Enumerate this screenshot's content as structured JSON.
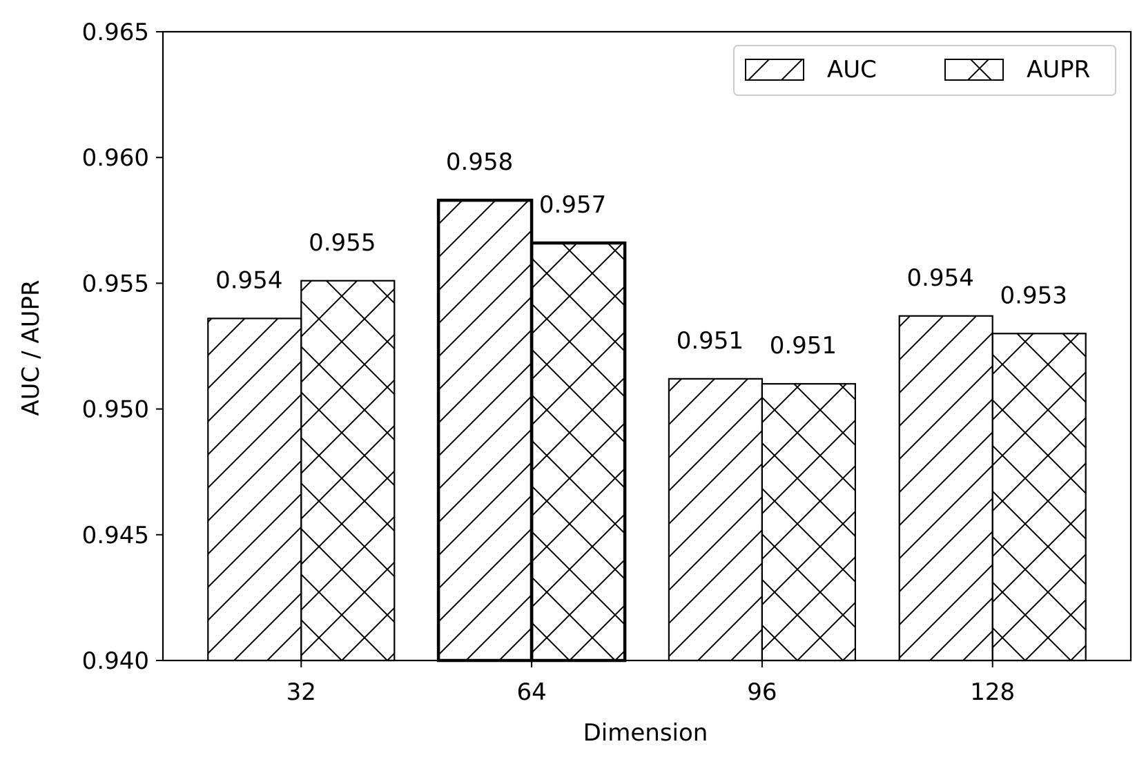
{
  "chart_data": {
    "type": "bar",
    "title": "",
    "xlabel": "Dimension",
    "ylabel": "AUC / AUPR",
    "categories": [
      "32",
      "64",
      "96",
      "128"
    ],
    "ylim": [
      0.94,
      0.965
    ],
    "yticks": [
      "0.940",
      "0.945",
      "0.950",
      "0.955",
      "0.960",
      "0.965"
    ],
    "grid": false,
    "legend_position": "top-right",
    "highlighted_category": "64",
    "series": [
      {
        "name": "AUC",
        "hatch": "diagonal",
        "values": [
          0.9536,
          0.9583,
          0.9512,
          0.9537
        ],
        "labels": [
          "0.954",
          "0.958",
          "0.951",
          "0.954"
        ]
      },
      {
        "name": "AUPR",
        "hatch": "cross",
        "values": [
          0.9551,
          0.9566,
          0.951,
          0.953
        ],
        "labels": [
          "0.955",
          "0.957",
          "0.951",
          "0.953"
        ]
      }
    ]
  }
}
